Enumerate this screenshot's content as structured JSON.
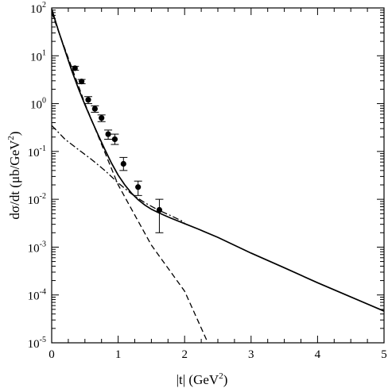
{
  "chart_data": {
    "type": "line",
    "title": "",
    "xlabel": "|t|   (GeV",
    "xlabel_sup": "2",
    "xlabel_close": ")",
    "ylabel": "dσ/dt   (μb/GeV",
    "ylabel_sup": "2",
    "ylabel_close": ")",
    "xlim": [
      0,
      5
    ],
    "ylim": [
      1e-05,
      100
    ],
    "yscale": "log",
    "grid": false,
    "x_ticks": [
      {
        "value": 0,
        "label": "0"
      },
      {
        "value": 1,
        "label": "1"
      },
      {
        "value": 2,
        "label": "2"
      },
      {
        "value": 3,
        "label": "3"
      },
      {
        "value": 4,
        "label": "4"
      },
      {
        "value": 5,
        "label": "5"
      }
    ],
    "y_ticks": [
      {
        "value": 100,
        "base": "10",
        "exp": "2"
      },
      {
        "value": 10,
        "base": "10",
        "exp": "1"
      },
      {
        "value": 1,
        "base": "10",
        "exp": "0"
      },
      {
        "value": 0.1,
        "base": "10",
        "exp": "-1"
      },
      {
        "value": 0.01,
        "base": "10",
        "exp": "-2"
      },
      {
        "value": 0.001,
        "base": "10",
        "exp": "-3"
      },
      {
        "value": 0.0001,
        "base": "10",
        "exp": "-4"
      },
      {
        "value": 1e-05,
        "base": "10",
        "exp": "-5"
      }
    ],
    "series": [
      {
        "style": "solid",
        "x": [
          0,
          0.1,
          0.2,
          0.3,
          0.4,
          0.5,
          0.6,
          0.7,
          0.8,
          0.9,
          1.0,
          1.1,
          1.2,
          1.3,
          1.4,
          1.5,
          1.6,
          1.7,
          1.8,
          2.0,
          2.2,
          2.5,
          3.0,
          3.5,
          4.0,
          4.5,
          5.0
        ],
        "y": [
          95,
          34,
          13,
          5.0,
          2.1,
          0.95,
          0.45,
          0.22,
          0.11,
          0.057,
          0.032,
          0.02,
          0.0135,
          0.0098,
          0.0076,
          0.0062,
          0.0053,
          0.0046,
          0.004,
          0.0031,
          0.0024,
          0.0016,
          0.00075,
          0.00037,
          0.00018,
          9.1e-05,
          4.6e-05
        ]
      },
      {
        "style": "dashed",
        "x": [
          0,
          0.5,
          1.0,
          1.5,
          2.0,
          2.35
        ],
        "y": [
          80,
          1.0,
          0.02,
          0.0011,
          0.00012,
          1e-05
        ]
      },
      {
        "style": "dashdot",
        "x": [
          0,
          0.2,
          0.4,
          0.6,
          0.8,
          1.0,
          1.2,
          1.4,
          1.6,
          1.8,
          2.0
        ],
        "y": [
          0.35,
          0.18,
          0.11,
          0.068,
          0.04,
          0.022,
          0.013,
          0.0085,
          0.006,
          0.0045,
          0.0033
        ]
      }
    ],
    "points": [
      {
        "x": 0.35,
        "y": 5.5,
        "err_low": 5.0,
        "err_high": 6.0
      },
      {
        "x": 0.45,
        "y": 2.9,
        "err_low": 2.6,
        "err_high": 3.2
      },
      {
        "x": 0.55,
        "y": 1.2,
        "err_low": 1.0,
        "err_high": 1.4
      },
      {
        "x": 0.65,
        "y": 0.78,
        "err_low": 0.66,
        "err_high": 0.9
      },
      {
        "x": 0.75,
        "y": 0.5,
        "err_low": 0.42,
        "err_high": 0.58
      },
      {
        "x": 0.85,
        "y": 0.23,
        "err_low": 0.18,
        "err_high": 0.28
      },
      {
        "x": 0.95,
        "y": 0.18,
        "err_low": 0.14,
        "err_high": 0.23
      },
      {
        "x": 1.08,
        "y": 0.055,
        "err_low": 0.04,
        "err_high": 0.075
      },
      {
        "x": 1.3,
        "y": 0.018,
        "err_low": 0.012,
        "err_high": 0.024
      },
      {
        "x": 1.62,
        "y": 0.006,
        "err_low": 0.002,
        "err_high": 0.01
      }
    ]
  }
}
